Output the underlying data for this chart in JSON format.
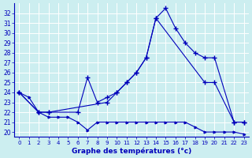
{
  "background_color": "#cceef0",
  "grid_color": "#ffffff",
  "line_color": "#0000bb",
  "xlabel": "Graphe des températures (°c)",
  "line1_x": [
    0,
    1,
    2,
    3,
    4,
    5,
    6,
    7,
    8,
    9,
    10,
    11,
    12,
    13,
    14,
    15,
    16,
    17,
    18,
    19,
    20,
    21,
    22,
    23
  ],
  "line1_y": [
    24,
    23.5,
    22,
    21.5,
    21.5,
    21.5,
    21,
    20.2,
    21,
    21,
    21,
    21,
    21,
    21,
    21,
    21,
    21,
    21,
    20.5,
    20,
    20,
    20,
    20,
    19.8
  ],
  "line2_x": [
    0,
    2,
    3,
    6,
    7,
    8,
    9,
    10,
    11,
    12,
    13,
    14,
    15,
    16,
    17,
    18,
    19,
    20,
    22,
    23
  ],
  "line2_y": [
    24,
    22,
    22,
    22,
    25.5,
    23,
    23.5,
    24,
    25,
    26,
    27.5,
    31.5,
    32.5,
    30.5,
    29,
    28,
    27.5,
    27.5,
    21,
    21
  ],
  "line3_x": [
    0,
    2,
    3,
    9,
    10,
    11,
    12,
    13,
    14,
    19,
    20,
    22,
    23
  ],
  "line3_y": [
    24,
    22,
    22,
    23,
    24,
    25,
    26,
    27.5,
    31.5,
    25,
    25,
    21,
    21
  ],
  "ylim_min": 19.5,
  "ylim_max": 33.0,
  "xlim_min": -0.5,
  "xlim_max": 23.5,
  "yticks": [
    20,
    21,
    22,
    23,
    24,
    25,
    26,
    27,
    28,
    29,
    30,
    31,
    32
  ],
  "xticks": [
    0,
    1,
    2,
    3,
    4,
    5,
    6,
    7,
    8,
    9,
    10,
    11,
    12,
    13,
    14,
    15,
    16,
    17,
    18,
    19,
    20,
    21,
    22,
    23
  ],
  "ylabel_fontsize": 5.5,
  "xlabel_fontsize": 6.5,
  "tick_fontsize": 5.0
}
